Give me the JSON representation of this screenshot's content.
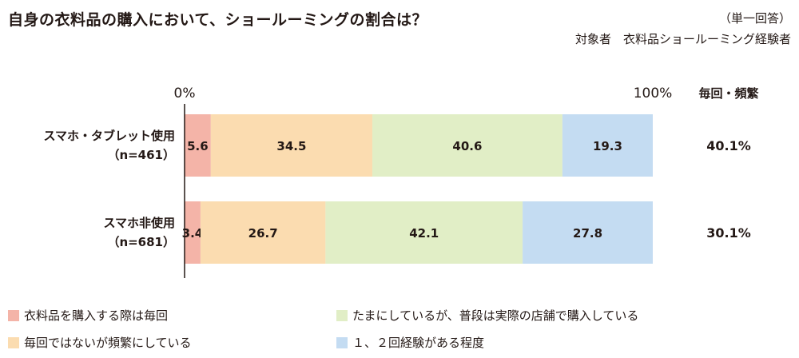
{
  "title": "自身の衣料品の購入において、ショールーミングの割合は？",
  "answer_type": "（単一回答）",
  "respondents": "対象者　衣料品ショールーミング経験者",
  "chart_data": {
    "type": "bar",
    "orientation": "horizontal-stacked-100",
    "axis_ticks": [
      "0%",
      "100%"
    ],
    "xlim": [
      0,
      100
    ],
    "categories": [
      {
        "label": "スマホ・タブレット使用",
        "n": "（n=461）"
      },
      {
        "label": "スマホ非使用",
        "n": "（n=681）"
      }
    ],
    "series": [
      {
        "name": "衣料品を購入する際は毎回",
        "color": "#f4b4a8",
        "values": [
          5.6,
          3.4
        ]
      },
      {
        "name": "毎回ではないが頻繁にしている",
        "color": "#fbdcb0",
        "values": [
          34.5,
          26.7
        ]
      },
      {
        "name": "たまにしているが、普段は実際の店舗で購入している",
        "color": "#e1eec6",
        "values": [
          40.6,
          42.1
        ]
      },
      {
        "name": "１、２回経験がある程度",
        "color": "#c4dcf2",
        "values": [
          19.3,
          27.8
        ]
      }
    ],
    "summary_header": "毎回・頻繁",
    "summary_values": [
      "40.1%",
      "30.1%"
    ],
    "grid": false
  }
}
